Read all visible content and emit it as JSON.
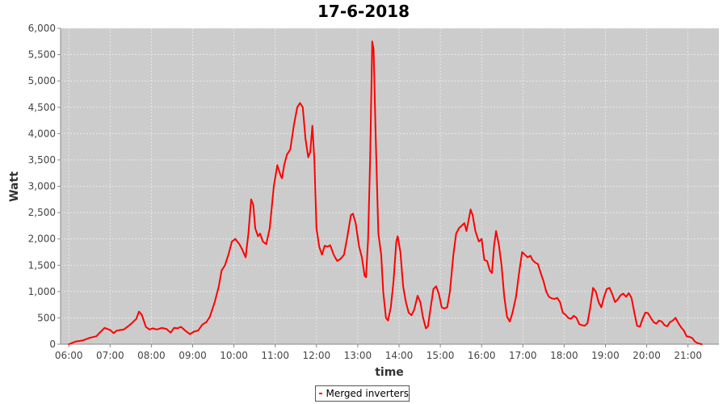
{
  "chart_data": {
    "type": "line",
    "title": "17-6-2018",
    "xlabel": "time",
    "ylabel": "Watt",
    "xlim": [
      "05:48",
      "21:45"
    ],
    "ylim": [
      0,
      6000
    ],
    "grid": true,
    "legend_position": "bottom-center",
    "colors": {
      "series": "#ff0000",
      "plot_background": "#cccccc",
      "grid": "#eeeeee"
    },
    "y_ticks": [
      "0",
      "500",
      "1,000",
      "1,500",
      "2,000",
      "2,500",
      "3,000",
      "3,500",
      "4,000",
      "4,500",
      "5,000",
      "5,500",
      "6,000"
    ],
    "x_ticks": [
      "06:00",
      "07:00",
      "08:00",
      "09:00",
      "10:00",
      "11:00",
      "12:00",
      "13:00",
      "14:00",
      "15:00",
      "16:00",
      "17:00",
      "18:00",
      "19:00",
      "20:00",
      "21:00"
    ],
    "series": [
      {
        "name": "Merged inverters",
        "color": "#ff0000",
        "points": [
          [
            "06:00",
            0
          ],
          [
            "06:10",
            50
          ],
          [
            "06:20",
            70
          ],
          [
            "06:30",
            120
          ],
          [
            "06:40",
            150
          ],
          [
            "06:45",
            220
          ],
          [
            "06:52",
            310
          ],
          [
            "07:00",
            270
          ],
          [
            "07:05",
            210
          ],
          [
            "07:10",
            260
          ],
          [
            "07:20",
            280
          ],
          [
            "07:30",
            380
          ],
          [
            "07:38",
            480
          ],
          [
            "07:42",
            620
          ],
          [
            "07:46",
            560
          ],
          [
            "07:52",
            330
          ],
          [
            "07:57",
            280
          ],
          [
            "08:02",
            300
          ],
          [
            "08:08",
            280
          ],
          [
            "08:15",
            310
          ],
          [
            "08:22",
            290
          ],
          [
            "08:28",
            220
          ],
          [
            "08:33",
            310
          ],
          [
            "08:38",
            300
          ],
          [
            "08:43",
            330
          ],
          [
            "08:50",
            250
          ],
          [
            "08:56",
            190
          ],
          [
            "09:02",
            240
          ],
          [
            "09:08",
            260
          ],
          [
            "09:14",
            370
          ],
          [
            "09:20",
            420
          ],
          [
            "09:25",
            520
          ],
          [
            "09:32",
            800
          ],
          [
            "09:38",
            1100
          ],
          [
            "09:42",
            1400
          ],
          [
            "09:47",
            1500
          ],
          [
            "09:52",
            1700
          ],
          [
            "09:57",
            1950
          ],
          [
            "10:02",
            2000
          ],
          [
            "10:08",
            1900
          ],
          [
            "10:12",
            1800
          ],
          [
            "10:17",
            1650
          ],
          [
            "10:21",
            2100
          ],
          [
            "10:25",
            2750
          ],
          [
            "10:28",
            2650
          ],
          [
            "10:31",
            2200
          ],
          [
            "10:35",
            2050
          ],
          [
            "10:38",
            2100
          ],
          [
            "10:42",
            1950
          ],
          [
            "10:47",
            1900
          ],
          [
            "10:52",
            2200
          ],
          [
            "10:58",
            3000
          ],
          [
            "11:03",
            3400
          ],
          [
            "11:08",
            3200
          ],
          [
            "11:10",
            3150
          ],
          [
            "11:13",
            3400
          ],
          [
            "11:17",
            3600
          ],
          [
            "11:22",
            3700
          ],
          [
            "11:27",
            4150
          ],
          [
            "11:32",
            4500
          ],
          [
            "11:36",
            4580
          ],
          [
            "11:40",
            4500
          ],
          [
            "11:44",
            3900
          ],
          [
            "11:48",
            3550
          ],
          [
            "11:51",
            3650
          ],
          [
            "11:54",
            4150
          ],
          [
            "11:57",
            3500
          ],
          [
            "12:00",
            2200
          ],
          [
            "12:04",
            1850
          ],
          [
            "12:08",
            1700
          ],
          [
            "12:12",
            1870
          ],
          [
            "12:16",
            1850
          ],
          [
            "12:20",
            1880
          ],
          [
            "12:25",
            1700
          ],
          [
            "12:30",
            1580
          ],
          [
            "12:35",
            1620
          ],
          [
            "12:40",
            1700
          ],
          [
            "12:45",
            2050
          ],
          [
            "12:50",
            2450
          ],
          [
            "12:53",
            2480
          ],
          [
            "12:57",
            2300
          ],
          [
            "13:02",
            1850
          ],
          [
            "13:06",
            1650
          ],
          [
            "13:10",
            1300
          ],
          [
            "13:12",
            1270
          ],
          [
            "13:15",
            2000
          ],
          [
            "13:18",
            3500
          ],
          [
            "13:21",
            5750
          ],
          [
            "13:23",
            5600
          ],
          [
            "13:26",
            4000
          ],
          [
            "13:30",
            2100
          ],
          [
            "13:34",
            1700
          ],
          [
            "13:37",
            1000
          ],
          [
            "13:41",
            500
          ],
          [
            "13:44",
            450
          ],
          [
            "13:48",
            700
          ],
          [
            "13:52",
            1200
          ],
          [
            "13:56",
            1950
          ],
          [
            "13:58",
            2050
          ],
          [
            "14:02",
            1750
          ],
          [
            "14:06",
            1100
          ],
          [
            "14:10",
            800
          ],
          [
            "14:14",
            600
          ],
          [
            "14:18",
            550
          ],
          [
            "14:22",
            650
          ],
          [
            "14:27",
            920
          ],
          [
            "14:31",
            800
          ],
          [
            "14:35",
            500
          ],
          [
            "14:39",
            300
          ],
          [
            "14:42",
            340
          ],
          [
            "14:46",
            700
          ],
          [
            "14:50",
            1050
          ],
          [
            "14:54",
            1100
          ],
          [
            "14:58",
            950
          ],
          [
            "15:02",
            700
          ],
          [
            "15:06",
            680
          ],
          [
            "15:10",
            700
          ],
          [
            "15:14",
            1000
          ],
          [
            "15:19",
            1700
          ],
          [
            "15:23",
            2100
          ],
          [
            "15:27",
            2200
          ],
          [
            "15:31",
            2250
          ],
          [
            "15:35",
            2300
          ],
          [
            "15:38",
            2150
          ],
          [
            "15:41",
            2350
          ],
          [
            "15:44",
            2560
          ],
          [
            "15:47",
            2450
          ],
          [
            "15:51",
            2150
          ],
          [
            "15:56",
            1950
          ],
          [
            "16:00",
            2000
          ],
          [
            "16:04",
            1600
          ],
          [
            "16:08",
            1580
          ],
          [
            "16:12",
            1400
          ],
          [
            "16:15",
            1350
          ],
          [
            "16:18",
            1850
          ],
          [
            "16:21",
            2150
          ],
          [
            "16:25",
            1900
          ],
          [
            "16:29",
            1500
          ],
          [
            "16:33",
            900
          ],
          [
            "16:37",
            520
          ],
          [
            "16:41",
            430
          ],
          [
            "16:45",
            600
          ],
          [
            "16:50",
            900
          ],
          [
            "16:55",
            1400
          ],
          [
            "16:59",
            1750
          ],
          [
            "17:03",
            1700
          ],
          [
            "17:07",
            1650
          ],
          [
            "17:11",
            1680
          ],
          [
            "17:14",
            1600
          ],
          [
            "17:18",
            1550
          ],
          [
            "17:22",
            1520
          ],
          [
            "17:26",
            1350
          ],
          [
            "17:30",
            1200
          ],
          [
            "17:34",
            1000
          ],
          [
            "17:38",
            900
          ],
          [
            "17:42",
            870
          ],
          [
            "17:46",
            860
          ],
          [
            "17:50",
            880
          ],
          [
            "17:54",
            800
          ],
          [
            "17:58",
            600
          ],
          [
            "18:02",
            560
          ],
          [
            "18:06",
            500
          ],
          [
            "18:10",
            480
          ],
          [
            "18:14",
            540
          ],
          [
            "18:18",
            500
          ],
          [
            "18:22",
            380
          ],
          [
            "18:26",
            360
          ],
          [
            "18:30",
            350
          ],
          [
            "18:34",
            400
          ],
          [
            "18:38",
            700
          ],
          [
            "18:42",
            1070
          ],
          [
            "18:46",
            1000
          ],
          [
            "18:50",
            800
          ],
          [
            "18:54",
            700
          ],
          [
            "18:58",
            900
          ],
          [
            "19:02",
            1050
          ],
          [
            "19:06",
            1070
          ],
          [
            "19:10",
            950
          ],
          [
            "19:14",
            800
          ],
          [
            "19:18",
            850
          ],
          [
            "19:22",
            930
          ],
          [
            "19:26",
            960
          ],
          [
            "19:30",
            900
          ],
          [
            "19:34",
            970
          ],
          [
            "19:38",
            880
          ],
          [
            "19:42",
            600
          ],
          [
            "19:46",
            350
          ],
          [
            "19:50",
            330
          ],
          [
            "19:54",
            480
          ],
          [
            "19:58",
            600
          ],
          [
            "20:02",
            590
          ],
          [
            "20:06",
            500
          ],
          [
            "20:10",
            420
          ],
          [
            "20:14",
            390
          ],
          [
            "20:18",
            450
          ],
          [
            "20:22",
            430
          ],
          [
            "20:26",
            360
          ],
          [
            "20:30",
            340
          ],
          [
            "20:34",
            420
          ],
          [
            "20:38",
            450
          ],
          [
            "20:42",
            500
          ],
          [
            "20:46",
            400
          ],
          [
            "20:50",
            320
          ],
          [
            "20:54",
            260
          ],
          [
            "20:58",
            150
          ],
          [
            "21:02",
            140
          ],
          [
            "21:06",
            120
          ],
          [
            "21:10",
            50
          ],
          [
            "21:14",
            20
          ],
          [
            "21:20",
            0
          ]
        ]
      }
    ]
  }
}
